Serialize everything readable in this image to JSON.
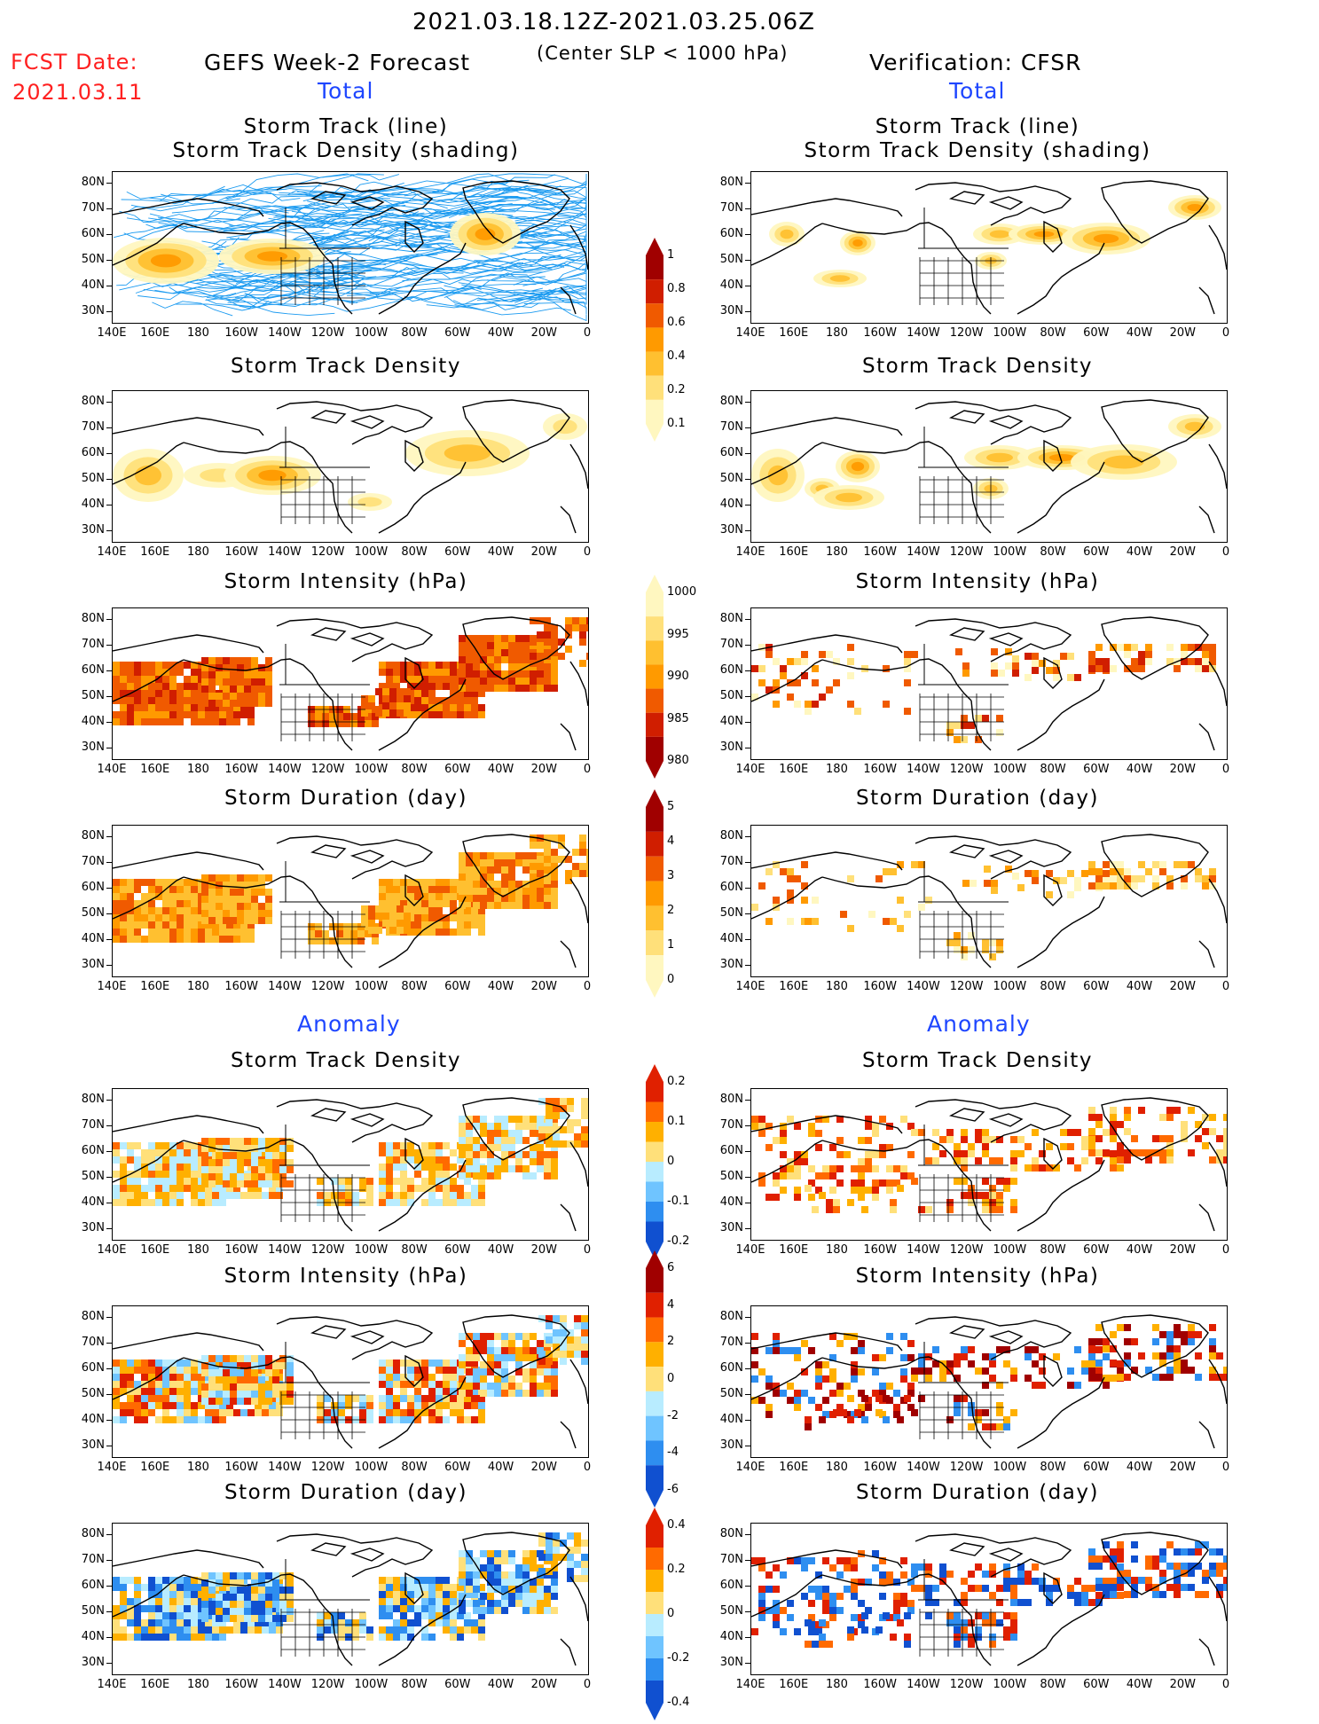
{
  "header": {
    "period": "2021.03.18.12Z-2021.03.25.06Z",
    "criterion": "(Center SLP < 1000 hPa)",
    "fcst_label": "FCST Date:",
    "fcst_date": "2021.03.11",
    "left_title": "GEFS Week-2 Forecast",
    "right_title": "Verification: CFSR"
  },
  "sections": {
    "total": "Total",
    "anomaly": "Anomaly"
  },
  "panel_titles": {
    "track_line": "Storm Track (line)",
    "track_shading": "Storm Track Density (shading)",
    "density": "Storm Track Density",
    "intensity": "Storm Intensity (hPa)",
    "duration": "Storm Duration (day)"
  },
  "axes": {
    "lat_ticks": [
      "80N",
      "70N",
      "60N",
      "50N",
      "40N",
      "30N"
    ],
    "lon_ticks": [
      "140E",
      "160E",
      "180",
      "160W",
      "140W",
      "120W",
      "100W",
      "80W",
      "60W",
      "40W",
      "20W",
      "0"
    ]
  },
  "colorbars": {
    "density": [
      "1",
      "0.8",
      "0.6",
      "0.4",
      "0.2",
      "0.1"
    ],
    "intensity": [
      "1000",
      "995",
      "990",
      "985",
      "980"
    ],
    "duration": [
      "5",
      "4",
      "3",
      "2",
      "1",
      "0"
    ],
    "density_anom": [
      "0.2",
      "0.1",
      "0",
      "-0.1",
      "-0.2"
    ],
    "intensity_anom": [
      "6",
      "4",
      "2",
      "0",
      "-2",
      "-4",
      "-6"
    ],
    "duration_anom": [
      "0.4",
      "0.2",
      "0",
      "-0.2",
      "-0.4"
    ]
  },
  "colors": {
    "header_red": "#ff2020",
    "section_blue": "#1e46ff",
    "track_line": "#1a9af0",
    "density_scale": [
      "#fff7c0",
      "#ffe07a",
      "#ffc030",
      "#ff9a00",
      "#f05a00",
      "#d01e00",
      "#a00000"
    ],
    "anomaly_positive": [
      "#ffe07a",
      "#ffb000",
      "#ff6a00",
      "#e02000"
    ],
    "anomaly_negative": [
      "#b8ecff",
      "#6fc4ff",
      "#2e8ef0",
      "#1050d0"
    ]
  }
}
